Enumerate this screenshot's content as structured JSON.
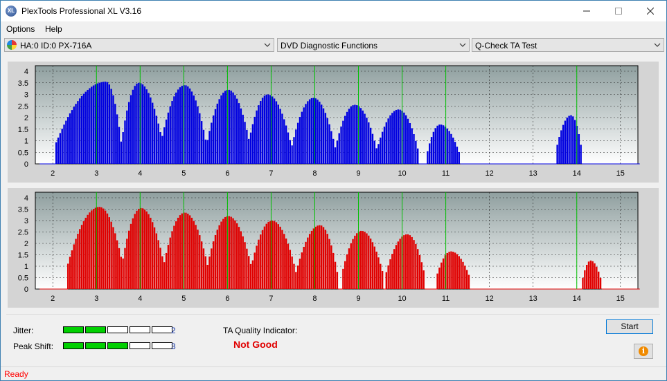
{
  "window": {
    "title": "PlexTools Professional XL V3.16",
    "app_icon_text": "XL"
  },
  "menu": {
    "items": [
      "Options",
      "Help"
    ]
  },
  "toolbar": {
    "drive": "HA:0 ID:0  PX-716A",
    "function": "DVD Diagnostic Functions",
    "test": "Q-Check TA Test"
  },
  "results": {
    "jitter_label": "Jitter:",
    "jitter_value": "2",
    "jitter_level": 2,
    "peak_shift_label": "Peak Shift:",
    "peak_shift_value": "3",
    "peak_shift_level": 3,
    "meter_cells": 5,
    "quality_label": "TA Quality Indicator:",
    "quality_value": "Not Good"
  },
  "buttons": {
    "start": "Start",
    "info_icon": "info-icon"
  },
  "status": {
    "text": "Ready"
  },
  "colors": {
    "top_series": "#0000e0",
    "bottom_series": "#e00000",
    "marker_lines": "#00c000",
    "status_text": "#ff0000"
  },
  "chart_data": [
    {
      "type": "bar",
      "name": "top-chart",
      "x_range": [
        1.6,
        15.4
      ],
      "ylim": [
        0,
        4
      ],
      "y_ticks": [
        "0",
        "0.5",
        "1",
        "1.5",
        "2",
        "2.5",
        "3",
        "3.5",
        "4"
      ],
      "x_ticks": [
        "2",
        "3",
        "4",
        "5",
        "6",
        "7",
        "8",
        "9",
        "10",
        "11",
        "12",
        "13",
        "14",
        "15"
      ],
      "marker_lines_at": [
        3,
        4,
        5,
        6,
        7,
        8,
        9,
        10,
        11,
        14
      ],
      "bar_color": "#0000e0",
      "humps": [
        {
          "start": 2.05,
          "end": 3.55,
          "peak_x": 3.2,
          "peak": 3.55
        },
        {
          "start": 3.55,
          "end": 4.5,
          "peak_x": 3.95,
          "peak": 3.5
        },
        {
          "start": 4.45,
          "end": 5.5,
          "peak_x": 5.0,
          "peak": 3.4
        },
        {
          "start": 5.5,
          "end": 6.5,
          "peak_x": 6.0,
          "peak": 3.2
        },
        {
          "start": 6.45,
          "end": 7.45,
          "peak_x": 6.9,
          "peak": 3.0
        },
        {
          "start": 7.45,
          "end": 8.45,
          "peak_x": 7.95,
          "peak": 2.85
        },
        {
          "start": 8.45,
          "end": 9.4,
          "peak_x": 8.9,
          "peak": 2.55
        },
        {
          "start": 9.4,
          "end": 10.35,
          "peak_x": 9.9,
          "peak": 2.35
        },
        {
          "start": 10.55,
          "end": 11.3,
          "peak_x": 10.85,
          "peak": 1.7
        },
        {
          "start": 13.5,
          "end": 14.1,
          "peak_x": 13.85,
          "peak": 2.1
        }
      ]
    },
    {
      "type": "bar",
      "name": "bottom-chart",
      "x_range": [
        1.6,
        15.4
      ],
      "ylim": [
        0,
        4
      ],
      "y_ticks": [
        "0",
        "0.5",
        "1",
        "1.5",
        "2",
        "2.5",
        "3",
        "3.5",
        "4"
      ],
      "x_ticks": [
        "2",
        "3",
        "4",
        "5",
        "6",
        "7",
        "8",
        "9",
        "10",
        "11",
        "12",
        "13",
        "14",
        "15"
      ],
      "marker_lines_at": [
        3,
        4,
        5,
        6,
        7,
        8,
        9,
        10,
        11,
        14
      ],
      "bar_color": "#e00000",
      "humps": [
        {
          "start": 2.3,
          "end": 3.6,
          "peak_x": 3.05,
          "peak": 3.6
        },
        {
          "start": 3.55,
          "end": 4.55,
          "peak_x": 4.0,
          "peak": 3.55
        },
        {
          "start": 4.5,
          "end": 5.55,
          "peak_x": 5.0,
          "peak": 3.35
        },
        {
          "start": 5.5,
          "end": 6.55,
          "peak_x": 6.0,
          "peak": 3.2
        },
        {
          "start": 6.5,
          "end": 7.55,
          "peak_x": 7.0,
          "peak": 3.0
        },
        {
          "start": 7.55,
          "end": 8.5,
          "peak_x": 8.1,
          "peak": 2.8
        },
        {
          "start": 8.6,
          "end": 9.55,
          "peak_x": 9.05,
          "peak": 2.55
        },
        {
          "start": 9.6,
          "end": 10.5,
          "peak_x": 10.1,
          "peak": 2.4
        },
        {
          "start": 10.75,
          "end": 11.55,
          "peak_x": 11.1,
          "peak": 1.65
        },
        {
          "start": 14.1,
          "end": 14.55,
          "peak_x": 14.3,
          "peak": 1.25
        }
      ]
    }
  ]
}
